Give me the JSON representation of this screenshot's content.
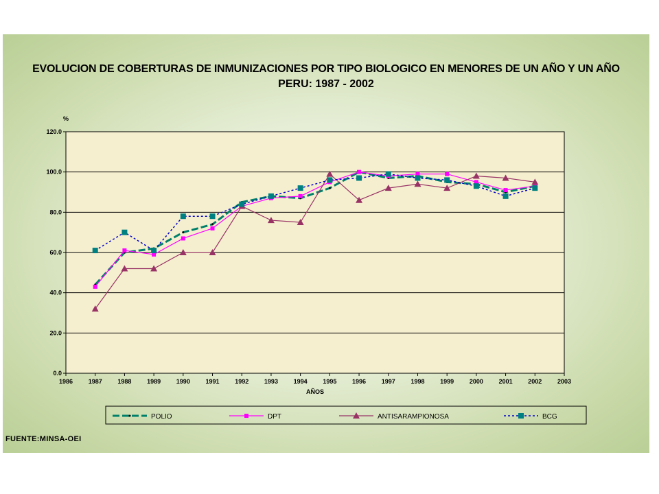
{
  "title_line1": "EVOLUCION DE COBERTURAS DE INMUNIZACIONES POR TIPO BIOLOGICO EN MENORES DE UN AÑO Y UN AÑO",
  "title_line2": "PERU: 1987 - 2002",
  "source": "FUENTE:MINSA-OEI",
  "chart_data": {
    "type": "line",
    "ylabel": "%",
    "xlabel": "AÑOS",
    "ylim": [
      0,
      120
    ],
    "xlim": [
      1986,
      2003
    ],
    "y_ticks": [
      "0.0",
      "20.0",
      "40.0",
      "60.0",
      "80.0",
      "100.0",
      "120.0"
    ],
    "x_ticks": [
      "1986",
      "1987",
      "1988",
      "1989",
      "1990",
      "1991",
      "1992",
      "1993",
      "1994",
      "1995",
      "1996",
      "1997",
      "1998",
      "1999",
      "2000",
      "2001",
      "2002",
      "2003"
    ],
    "grid": true,
    "legend_position": "bottom",
    "x": [
      1987,
      1988,
      1989,
      1990,
      1991,
      1992,
      1993,
      1994,
      1995,
      1996,
      1997,
      1998,
      1999,
      2000,
      2001,
      2002
    ],
    "series": [
      {
        "name": "POLIO",
        "color": "#00806a",
        "values": [
          44,
          60,
          62,
          70,
          74,
          85,
          88,
          87,
          92,
          100,
          97,
          98,
          95,
          94,
          90,
          93
        ]
      },
      {
        "name": "DPT",
        "color": "#ff00ff",
        "values": [
          43,
          61,
          59,
          67,
          72,
          83,
          87,
          88,
          95,
          100,
          98,
          99,
          99,
          95,
          91,
          93
        ]
      },
      {
        "name": "ANTISARAMPIONOSA",
        "color": "#993366",
        "values": [
          32,
          52,
          52,
          60,
          60,
          83,
          76,
          75,
          99,
          86,
          92,
          94,
          92,
          98,
          97,
          95
        ]
      },
      {
        "name": "BCG",
        "color": "#0000cc",
        "values": [
          61,
          70,
          61,
          78,
          78,
          84,
          88,
          92,
          96,
          97,
          99,
          97,
          96,
          93,
          88,
          92
        ]
      }
    ]
  }
}
